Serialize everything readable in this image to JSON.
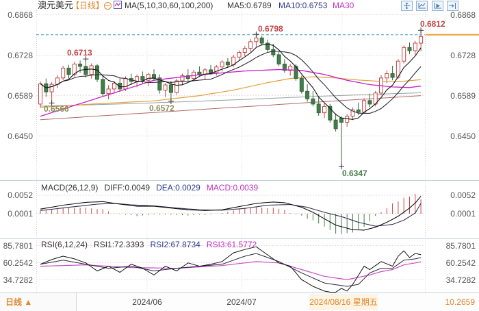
{
  "header": {
    "symbol": "澳元美元",
    "period_tag": "【日线】",
    "ma_settings": "MA(5,10,30,60,100,200)",
    "ma5_label": "MA5:0.6789",
    "ma10_label": "MA10:0.6753",
    "ma30_label": "MA30",
    "toolbar_icon_names": [
      "crosshair-icon",
      "scale-icon",
      "indicator-play-icon",
      "jump-latest-icon"
    ],
    "collapse_icon_name": "collapse-circle-minus-icon",
    "legend_icon_name": "mini-chart-icon"
  },
  "price_panel": {
    "axis_left": [
      "0.6868",
      "0.6728",
      "0.6589",
      "0.6450"
    ],
    "axis_right": [
      "0.6868",
      "0.6728",
      "0.6589",
      "0.6450"
    ],
    "annotations": {
      "high1": "0.6713",
      "high2": "0.6798",
      "high3": "0.6812",
      "low1": "0.6566",
      "low2": "0.6572",
      "low3": "0.6347"
    }
  },
  "macd_panel": {
    "title": "MACD(26,12,9)",
    "diff_label": "DIFF:0.0049",
    "dea_label": "DEA:0.0029",
    "macd_label": "MACD:0.0039",
    "axis_left": [
      "0.0052",
      "0.0001"
    ],
    "axis_right": [
      "0.0052",
      "0.0001"
    ]
  },
  "rsi_panel": {
    "title": "RSI(6,12,24)",
    "rsi1_label": "RSI1:72.3393",
    "rsi2_label": "RSI2:67.8734",
    "rsi3_label": "RSI3:61.5772",
    "axis_left": [
      "85.7801",
      "60.2542",
      "34.7282"
    ],
    "axis_right": [
      "85.7801",
      "60.2542",
      "34.7282"
    ]
  },
  "bottom_bar": {
    "period_button": "日线 ▲",
    "x_labels": [
      "2024/06",
      "2024/07"
    ],
    "highlight_date": "2024/08/16 星期五",
    "right_value": "10.2659"
  },
  "colors": {
    "up": "#c24545",
    "down_fill": "#447c4a",
    "down_stroke": "#35663a",
    "ma5": "#111111",
    "ma10": "#2a2a3a",
    "ma30": "#c820c8",
    "ma60": "#e2a03c",
    "ma100": "#98a0a0",
    "ma200": "#b06868",
    "diff": "#111111",
    "dea": "#303050",
    "rsi1": "#111111",
    "rsi2": "#26263e",
    "rsi3": "#c84ac8",
    "hist_pos": "#c24545",
    "hist_neg": "#447c4a",
    "dashed_line": "#3d9ac2",
    "axis_price_tag": "#f0a030",
    "grid_h": "#f0d9d9",
    "grid_v": "#efe0e0",
    "gutter": "#d4d4d4",
    "separator": "#c5d5e5",
    "accent_orange": "#e0872e"
  },
  "chart_data": {
    "type": "candlestick",
    "symbol": "澳元美元",
    "timeframe": "日线",
    "price_axis_ticks": [
      0.6868,
      0.6728,
      0.6589,
      0.645
    ],
    "macd_axis_ticks": [
      0.0052,
      0.0001
    ],
    "rsi_axis_ticks": [
      85.7801,
      60.2542,
      34.7282
    ],
    "x_axis_labels": [
      "2024/06",
      "2024/07",
      "2024/08/16 星期五"
    ],
    "last_price_line": 0.6799,
    "candles": [
      [
        0.656,
        0.6638,
        0.6548,
        0.663
      ],
      [
        0.663,
        0.6648,
        0.6585,
        0.6602
      ],
      [
        0.6602,
        0.6635,
        0.6566,
        0.6628
      ],
      [
        0.6628,
        0.666,
        0.6615,
        0.665
      ],
      [
        0.665,
        0.6692,
        0.6642,
        0.6684
      ],
      [
        0.6684,
        0.6695,
        0.6648,
        0.6662
      ],
      [
        0.6662,
        0.6706,
        0.6655,
        0.6698
      ],
      [
        0.6698,
        0.671,
        0.6668,
        0.669
      ],
      [
        0.669,
        0.6713,
        0.6652,
        0.6662
      ],
      [
        0.6662,
        0.67,
        0.6648,
        0.6692
      ],
      [
        0.6692,
        0.6698,
        0.6636,
        0.6645
      ],
      [
        0.6645,
        0.6658,
        0.6586,
        0.6596
      ],
      [
        0.6596,
        0.6625,
        0.6576,
        0.6612
      ],
      [
        0.6612,
        0.664,
        0.6596,
        0.6632
      ],
      [
        0.6632,
        0.6648,
        0.6602,
        0.6612
      ],
      [
        0.6612,
        0.6655,
        0.6605,
        0.6648
      ],
      [
        0.6648,
        0.6665,
        0.6626,
        0.6638
      ],
      [
        0.6638,
        0.6662,
        0.6618,
        0.6655
      ],
      [
        0.6655,
        0.6672,
        0.663,
        0.6642
      ],
      [
        0.6642,
        0.6668,
        0.6622,
        0.6662
      ],
      [
        0.6662,
        0.668,
        0.664,
        0.665
      ],
      [
        0.665,
        0.6662,
        0.6596,
        0.6608
      ],
      [
        0.6608,
        0.6632,
        0.6585,
        0.6626
      ],
      [
        0.6626,
        0.664,
        0.6572,
        0.66
      ],
      [
        0.66,
        0.6648,
        0.6592,
        0.664
      ],
      [
        0.664,
        0.6665,
        0.6625,
        0.6658
      ],
      [
        0.6658,
        0.668,
        0.6638,
        0.6648
      ],
      [
        0.6648,
        0.6678,
        0.664,
        0.667
      ],
      [
        0.667,
        0.669,
        0.6655,
        0.6662
      ],
      [
        0.6662,
        0.6685,
        0.6645,
        0.6678
      ],
      [
        0.6678,
        0.6695,
        0.666,
        0.6668
      ],
      [
        0.6668,
        0.6695,
        0.6658,
        0.6688
      ],
      [
        0.6688,
        0.6712,
        0.6672,
        0.6705
      ],
      [
        0.6705,
        0.6718,
        0.6685,
        0.6695
      ],
      [
        0.6695,
        0.673,
        0.6688,
        0.6722
      ],
      [
        0.6722,
        0.6745,
        0.671,
        0.6738
      ],
      [
        0.6738,
        0.676,
        0.6725,
        0.6752
      ],
      [
        0.6752,
        0.6785,
        0.674,
        0.6775
      ],
      [
        0.6775,
        0.6798,
        0.6758,
        0.6788
      ],
      [
        0.6788,
        0.6795,
        0.6762,
        0.677
      ],
      [
        0.677,
        0.6782,
        0.674,
        0.6748
      ],
      [
        0.6748,
        0.6768,
        0.6722,
        0.673
      ],
      [
        0.673,
        0.6742,
        0.669,
        0.6698
      ],
      [
        0.6698,
        0.6715,
        0.6668,
        0.6676
      ],
      [
        0.6676,
        0.6698,
        0.6658,
        0.669
      ],
      [
        0.669,
        0.6698,
        0.664,
        0.6648
      ],
      [
        0.6648,
        0.6658,
        0.6596,
        0.6604
      ],
      [
        0.6604,
        0.6628,
        0.6568,
        0.6578
      ],
      [
        0.6578,
        0.6605,
        0.6552,
        0.656
      ],
      [
        0.656,
        0.6585,
        0.652,
        0.653
      ],
      [
        0.653,
        0.6562,
        0.6512,
        0.6552
      ],
      [
        0.6552,
        0.656,
        0.6496,
        0.6505
      ],
      [
        0.6505,
        0.6528,
        0.6465,
        0.6475
      ],
      [
        0.6512,
        0.6518,
        0.6347,
        0.6497
      ],
      [
        0.6497,
        0.6525,
        0.6482,
        0.6518
      ],
      [
        0.6518,
        0.6548,
        0.6505,
        0.654
      ],
      [
        0.654,
        0.6565,
        0.6522,
        0.6532
      ],
      [
        0.6532,
        0.658,
        0.6528,
        0.6572
      ],
      [
        0.6572,
        0.6596,
        0.655,
        0.656
      ],
      [
        0.656,
        0.6605,
        0.6552,
        0.6598
      ],
      [
        0.6598,
        0.666,
        0.659,
        0.665
      ],
      [
        0.665,
        0.6675,
        0.6632,
        0.6665
      ],
      [
        0.6665,
        0.6692,
        0.6642,
        0.6652
      ],
      [
        0.6652,
        0.6715,
        0.6648,
        0.6708
      ],
      [
        0.6708,
        0.6762,
        0.67,
        0.6755
      ],
      [
        0.6755,
        0.6772,
        0.6732,
        0.6744
      ],
      [
        0.6744,
        0.6778,
        0.673,
        0.677
      ],
      [
        0.677,
        0.6812,
        0.6742,
        0.6793
      ]
    ],
    "ma_overlays": {
      "ma30": [
        [
          0,
          0.6518
        ],
        [
          10,
          0.658
        ],
        [
          20,
          0.6642
        ],
        [
          28,
          0.6661
        ],
        [
          36,
          0.6674
        ],
        [
          42,
          0.6679
        ],
        [
          46,
          0.6676
        ],
        [
          50,
          0.6662
        ],
        [
          54,
          0.6642
        ],
        [
          58,
          0.6627
        ],
        [
          62,
          0.6619
        ],
        [
          65,
          0.6617
        ],
        [
          67,
          0.6622
        ]
      ],
      "ma60": [
        [
          0,
          0.6549
        ],
        [
          10,
          0.6561
        ],
        [
          20,
          0.6571
        ],
        [
          28,
          0.6589
        ],
        [
          34,
          0.6608
        ],
        [
          40,
          0.6634
        ],
        [
          44,
          0.6648
        ],
        [
          48,
          0.6654
        ],
        [
          52,
          0.665
        ],
        [
          56,
          0.6643
        ],
        [
          60,
          0.6638
        ],
        [
          64,
          0.6639
        ],
        [
          67,
          0.6644
        ]
      ],
      "ma100": [
        [
          0,
          0.6553
        ],
        [
          12,
          0.6559
        ],
        [
          24,
          0.6567
        ],
        [
          36,
          0.6576
        ],
        [
          48,
          0.6586
        ],
        [
          58,
          0.6593
        ],
        [
          67,
          0.6599
        ]
      ],
      "ma200": [
        [
          0,
          0.6506
        ],
        [
          12,
          0.6521
        ],
        [
          24,
          0.6536
        ],
        [
          36,
          0.6551
        ],
        [
          48,
          0.6566
        ],
        [
          58,
          0.6578
        ],
        [
          67,
          0.6589
        ]
      ]
    },
    "macd": {
      "diff": [
        [
          0,
          0.0013
        ],
        [
          4,
          0.0024
        ],
        [
          8,
          0.0032
        ],
        [
          11,
          0.0034
        ],
        [
          14,
          0.0027
        ],
        [
          17,
          0.0021
        ],
        [
          20,
          0.0021
        ],
        [
          23,
          0.0016
        ],
        [
          26,
          0.0011
        ],
        [
          29,
          0.0009
        ],
        [
          32,
          0.0011
        ],
        [
          35,
          0.002
        ],
        [
          38,
          0.0029
        ],
        [
          41,
          0.0033
        ],
        [
          43,
          0.0031
        ],
        [
          46,
          0.0018
        ],
        [
          48,
          0.0004
        ],
        [
          50,
          -0.0014
        ],
        [
          52,
          -0.0032
        ],
        [
          55,
          -0.0045
        ],
        [
          57,
          -0.0046
        ],
        [
          59,
          -0.0038
        ],
        [
          61,
          -0.0024
        ],
        [
          63,
          -0.0007
        ],
        [
          65,
          0.0016
        ],
        [
          66,
          0.003
        ],
        [
          67,
          0.0049
        ]
      ],
      "dea": [
        [
          0,
          0.0009
        ],
        [
          5,
          0.0018
        ],
        [
          10,
          0.0027
        ],
        [
          13,
          0.0029
        ],
        [
          16,
          0.0025
        ],
        [
          20,
          0.0022
        ],
        [
          24,
          0.0016
        ],
        [
          28,
          0.0011
        ],
        [
          32,
          0.001
        ],
        [
          36,
          0.0015
        ],
        [
          40,
          0.0024
        ],
        [
          44,
          0.0026
        ],
        [
          47,
          0.0018
        ],
        [
          50,
          0.0004
        ],
        [
          53,
          -0.0008
        ],
        [
          56,
          -0.0024
        ],
        [
          59,
          -0.0035
        ],
        [
          62,
          -0.003
        ],
        [
          64,
          -0.0018
        ],
        [
          66,
          0.0002
        ],
        [
          67,
          0.0029
        ]
      ]
    },
    "rsi": {
      "rsi1": [
        [
          0,
          58
        ],
        [
          2,
          65
        ],
        [
          4,
          70
        ],
        [
          6,
          66
        ],
        [
          8,
          60
        ],
        [
          10,
          48
        ],
        [
          12,
          55
        ],
        [
          14,
          46
        ],
        [
          16,
          58
        ],
        [
          18,
          52
        ],
        [
          20,
          42
        ],
        [
          22,
          55
        ],
        [
          24,
          48
        ],
        [
          26,
          60
        ],
        [
          28,
          55
        ],
        [
          30,
          58
        ],
        [
          32,
          62
        ],
        [
          34,
          75
        ],
        [
          36,
          80
        ],
        [
          38,
          84
        ],
        [
          40,
          72
        ],
        [
          42,
          60
        ],
        [
          44,
          55
        ],
        [
          46,
          35
        ],
        [
          48,
          25
        ],
        [
          50,
          18
        ],
        [
          52,
          15
        ],
        [
          53,
          22
        ],
        [
          54,
          18
        ],
        [
          55,
          28
        ],
        [
          57,
          55
        ],
        [
          58,
          50
        ],
        [
          60,
          62
        ],
        [
          62,
          55
        ],
        [
          63,
          70
        ],
        [
          64,
          78
        ],
        [
          65,
          68
        ],
        [
          66,
          74
        ],
        [
          67,
          72.3393
        ]
      ],
      "rsi2": [
        [
          0,
          58
        ],
        [
          4,
          64
        ],
        [
          8,
          58
        ],
        [
          12,
          52
        ],
        [
          16,
          55
        ],
        [
          20,
          48
        ],
        [
          24,
          52
        ],
        [
          28,
          55
        ],
        [
          32,
          58
        ],
        [
          36,
          70
        ],
        [
          38,
          74
        ],
        [
          42,
          62
        ],
        [
          46,
          45
        ],
        [
          50,
          30
        ],
        [
          54,
          25
        ],
        [
          56,
          28
        ],
        [
          58,
          45
        ],
        [
          60,
          52
        ],
        [
          62,
          52
        ],
        [
          64,
          64
        ],
        [
          66,
          66
        ],
        [
          67,
          67.8734
        ]
      ],
      "rsi3": [
        [
          0,
          55
        ],
        [
          8,
          57
        ],
        [
          16,
          53
        ],
        [
          24,
          52
        ],
        [
          32,
          56
        ],
        [
          38,
          62
        ],
        [
          42,
          60
        ],
        [
          46,
          50
        ],
        [
          50,
          40
        ],
        [
          54,
          35
        ],
        [
          58,
          42
        ],
        [
          60,
          47
        ],
        [
          62,
          50
        ],
        [
          64,
          57
        ],
        [
          66,
          60
        ],
        [
          67,
          61.5772
        ]
      ]
    },
    "key_points": {
      "highs": [
        {
          "index": 8,
          "price": 0.6713
        },
        {
          "index": 38,
          "price": 0.6798
        },
        {
          "index": 67,
          "price": 0.6812
        }
      ],
      "lows": [
        {
          "index": 2,
          "price": 0.6566
        },
        {
          "index": 23,
          "price": 0.6572
        },
        {
          "index": 53,
          "price": 0.6347
        }
      ]
    }
  }
}
